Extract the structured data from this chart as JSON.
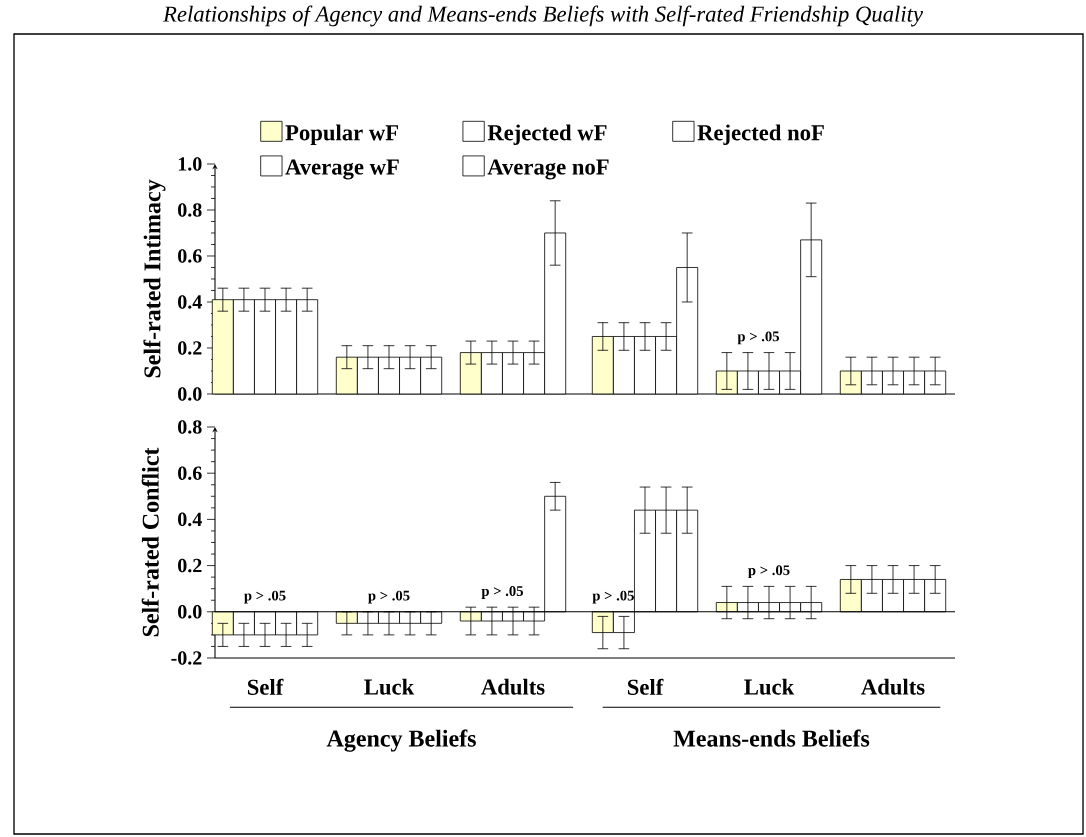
{
  "chart_data": [
    {
      "type": "bar",
      "title": "Relationships of Agency and Means-ends Beliefs with Self-rated Friendship Quality",
      "ylabel": "Self-rated Intimacy",
      "categories": [
        "Self",
        "Luck",
        "Adults"
      ],
      "legend": "top",
      "tick_labels": "y",
      "ylim": [
        0,
        1
      ],
      "yticks": [
        {
          "value": 0,
          "label": "0.0"
        },
        {
          "value": 0.2,
          "label": "0.2"
        },
        {
          "value": 0.4,
          "label": "0.4"
        },
        {
          "value": 0.6,
          "label": "0.6"
        },
        {
          "value": 0.8,
          "label": "0.8"
        },
        {
          "value": 1,
          "label": "1.0"
        }
      ],
      "series": [
        {
          "name": "Popular wF",
          "color": "#ffffcc",
          "values": [
            0.41,
            0.16,
            0.18
          ],
          "errors": [
            0.05,
            0.05,
            0.05
          ]
        },
        {
          "name": "Average wF",
          "color": "#ffffff",
          "values": [
            0.41,
            0.16,
            0.18
          ],
          "errors": [
            0.05,
            0.05,
            0.05
          ]
        },
        {
          "name": "Rejected wF",
          "color": "#ffffff",
          "values": [
            0.41,
            0.16,
            0.18
          ],
          "errors": [
            0.05,
            0.05,
            0.05
          ]
        },
        {
          "name": "Average noF",
          "color": "#ffffff",
          "values": [
            0.41,
            0.16,
            0.18
          ],
          "errors": [
            0.05,
            0.05,
            0.05
          ]
        },
        {
          "name": "Rejected noF",
          "color": "#ffffff",
          "values": [
            0.41,
            0.16,
            0.7
          ],
          "errors": [
            0.05,
            0.05,
            0.14
          ]
        }
      ]
    },
    {
      "type": "bar",
      "categories": [
        "Self",
        "Luck",
        "Adults"
      ],
      "tick_labels": false,
      "ylim": [
        0,
        1
      ],
      "annotations": [
        {
          "text": "p > .05",
          "x": "Luck",
          "y": 0.18
        }
      ],
      "series": [
        {
          "color": "#ffffcc",
          "values": [
            0.25,
            0.1,
            0.1
          ],
          "errors": [
            0.06,
            0.08,
            0.06
          ]
        },
        {
          "color": "#ffffff",
          "values": [
            0.25,
            0.1,
            0.1
          ],
          "errors": [
            0.06,
            0.08,
            0.06
          ]
        },
        {
          "color": "#ffffff",
          "values": [
            0.25,
            0.1,
            0.1
          ],
          "errors": [
            0.06,
            0.08,
            0.06
          ]
        },
        {
          "color": "#ffffff",
          "values": [
            0.25,
            0.1,
            0.1
          ],
          "errors": [
            0.06,
            0.08,
            0.06
          ]
        },
        {
          "color": "#ffffff",
          "values": [
            0.55,
            0.67,
            0.1
          ],
          "errors": [
            0.15,
            0.16,
            0.06
          ]
        }
      ]
    },
    {
      "type": "bar",
      "ylabel": "Self-rated Conflict",
      "xlabel": "Agency Beliefs",
      "categories": [
        "Self",
        "Luck",
        "Adults"
      ],
      "ylim": [
        -0.2,
        0.8
      ],
      "yticks": [
        {
          "value": -0.2,
          "label": "-0.2"
        },
        {
          "value": 0,
          "label": "0.0"
        },
        {
          "value": 0.2,
          "label": "0.2"
        },
        {
          "value": 0.4,
          "label": "0.4"
        },
        {
          "value": 0.6,
          "label": "0.6"
        },
        {
          "value": 0.8,
          "label": "0.8"
        }
      ],
      "ref_lines": [
        {
          "axis": "y",
          "value": 0
        }
      ],
      "annotations": [
        {
          "text": "p > .05",
          "x": "Self",
          "y": 0
        },
        {
          "text": "p > .05",
          "x": "Luck",
          "y": 0
        },
        {
          "text": "p > .05",
          "x": "Adults",
          "y": 0.02
        }
      ],
      "series": [
        {
          "color": "#ffffcc",
          "values": [
            -0.1,
            -0.05,
            -0.04
          ],
          "errors": [
            0.05,
            0.05,
            0.06
          ]
        },
        {
          "color": "#ffffff",
          "values": [
            -0.1,
            -0.05,
            -0.04
          ],
          "errors": [
            0.05,
            0.05,
            0.06
          ]
        },
        {
          "color": "#ffffff",
          "values": [
            -0.1,
            -0.05,
            -0.04
          ],
          "errors": [
            0.05,
            0.05,
            0.06
          ]
        },
        {
          "color": "#ffffff",
          "values": [
            -0.1,
            -0.05,
            -0.04
          ],
          "errors": [
            0.05,
            0.05,
            0.06
          ]
        },
        {
          "color": "#ffffff",
          "values": [
            -0.1,
            -0.05,
            0.5
          ],
          "errors": [
            0.05,
            0.05,
            0.06
          ]
        }
      ]
    },
    {
      "type": "bar",
      "xlabel": "Means-ends Beliefs",
      "categories": [
        "Self",
        "Luck",
        "Adults"
      ],
      "tick_labels": "x",
      "ylim": [
        -0.2,
        0.8
      ],
      "ref_lines": [
        {
          "axis": "y",
          "value": 0
        }
      ],
      "annotations": [
        {
          "text": "p > .05",
          "x": "Self",
          "y": 0
        },
        {
          "text": "p > .05",
          "x": "Luck",
          "y": 0.11
        }
      ],
      "series": [
        {
          "color": "#ffffcc",
          "values": [
            -0.09,
            0.04,
            0.14
          ],
          "errors": [
            0.07,
            0.07,
            0.06
          ]
        },
        {
          "color": "#ffffff",
          "values": [
            -0.09,
            0.04,
            0.14
          ],
          "errors": [
            0.07,
            0.07,
            0.06
          ]
        },
        {
          "color": "#ffffff",
          "values": [
            0.44,
            0.04,
            0.14
          ],
          "errors": [
            0.1,
            0.07,
            0.06
          ]
        },
        {
          "color": "#ffffff",
          "values": [
            0.44,
            0.04,
            0.14
          ],
          "errors": [
            0.1,
            0.07,
            0.06
          ]
        },
        {
          "color": "#ffffff",
          "values": [
            0.44,
            0.04,
            0.14
          ],
          "errors": [
            0.1,
            0.07,
            0.06
          ]
        }
      ]
    }
  ]
}
